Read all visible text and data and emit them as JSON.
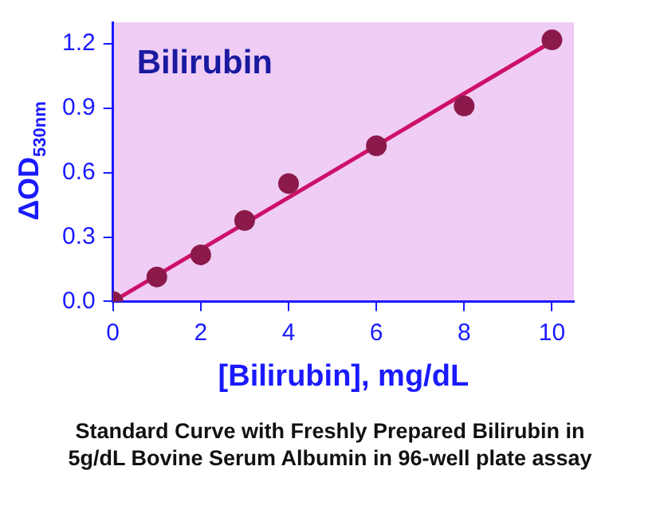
{
  "chart_data": {
    "type": "scatter",
    "title": "Bilirubin",
    "xlabel": "[Bilirubin], mg/dL",
    "ylabel": "ΔOD$_{530nm}$",
    "annotations": [
      "Standard Curve with Freshly Prepared Bilirubin in 5g/dL Bovine Serum Albumin in 96-well plate assay"
    ],
    "xlim": [
      0,
      10.5
    ],
    "xticks": [
      0,
      2,
      4,
      6,
      8,
      10
    ],
    "ylim": [
      0,
      1.3
    ],
    "yticks": [
      {
        "value": 0,
        "label": "0.0"
      },
      0.3,
      0.6,
      0.9,
      1.2
    ],
    "grid": false,
    "legend": false,
    "series": [
      {
        "marker": "circle",
        "color": "#8b1a4a",
        "x": [
          0,
          1,
          2,
          3,
          4,
          6,
          8,
          10
        ],
        "values": [
          0,
          0.114,
          0.217,
          0.377,
          0.549,
          0.725,
          0.91,
          1.218
        ]
      },
      {
        "type": "line",
        "color": "#cc1166",
        "line_style": "solid",
        "x": [
          0,
          10
        ],
        "values": [
          0,
          1.21
        ]
      }
    ]
  }
}
